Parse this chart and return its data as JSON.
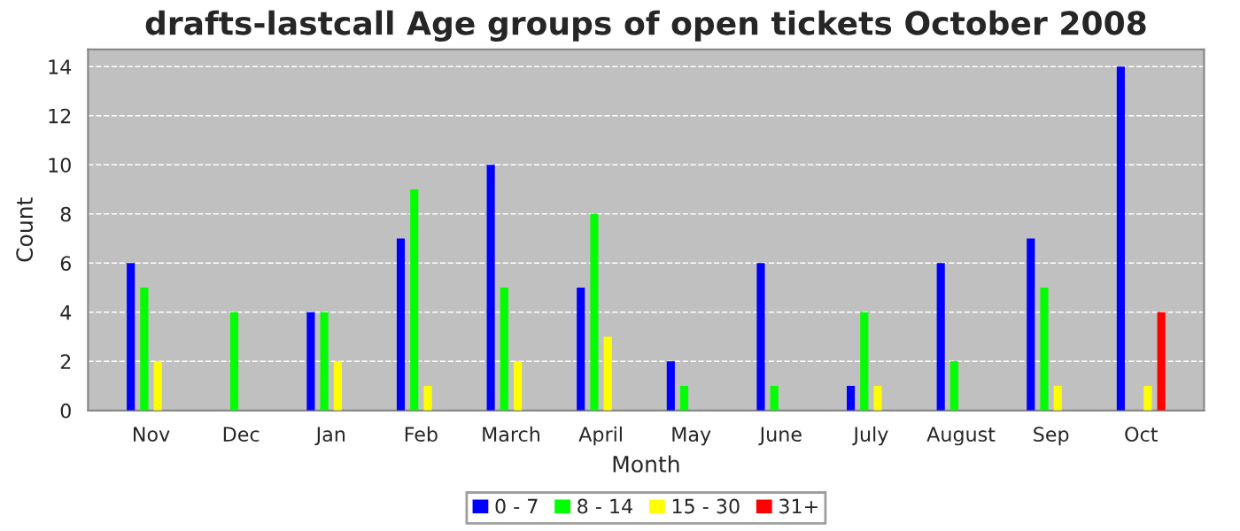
{
  "chart_data": {
    "type": "bar",
    "title": "drafts-lastcall Age groups of open tickets October 2008",
    "xlabel": "Month",
    "ylabel": "Count",
    "categories": [
      "Nov",
      "Dec",
      "Jan",
      "Feb",
      "March",
      "April",
      "May",
      "June",
      "July",
      "August",
      "Sep",
      "Oct"
    ],
    "series": [
      {
        "name": "0 - 7",
        "color": "#0000ff",
        "values": [
          6,
          0,
          4,
          7,
          10,
          5,
          2,
          6,
          1,
          6,
          7,
          14
        ]
      },
      {
        "name": "8 - 14",
        "color": "#00ff00",
        "values": [
          5,
          4,
          4,
          9,
          5,
          8,
          1,
          1,
          4,
          2,
          5,
          0
        ]
      },
      {
        "name": "15 - 30",
        "color": "#ffff00",
        "values": [
          2,
          0,
          2,
          1,
          2,
          3,
          0,
          0,
          1,
          0,
          1,
          1
        ]
      },
      {
        "name": "31+",
        "color": "#ff0000",
        "values": [
          0,
          0,
          0,
          0,
          0,
          0,
          0,
          0,
          0,
          0,
          0,
          4
        ]
      }
    ],
    "ylim": [
      0,
      14.7
    ],
    "yticks": [
      0,
      2,
      4,
      6,
      8,
      10,
      12,
      14
    ],
    "grid": "y",
    "legend": "bottom"
  }
}
